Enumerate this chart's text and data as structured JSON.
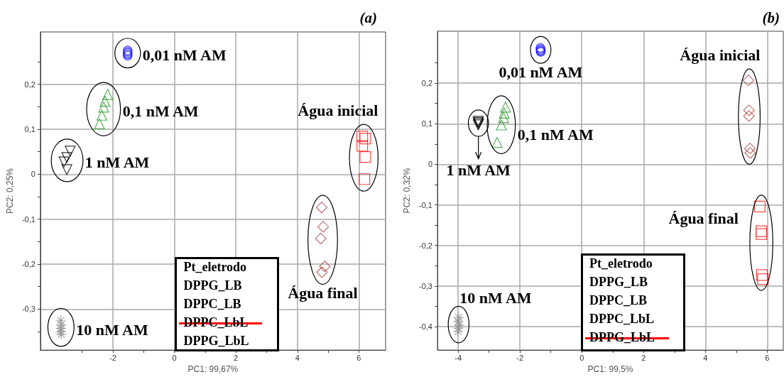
{
  "chart_data": [
    {
      "type": "scatter",
      "title": "(a)",
      "xlabel": "PC1: 99,67%",
      "ylabel": "PC2: 0,25%",
      "xlim": [
        -4.36,
        6.87
      ],
      "ylim": [
        -0.391,
        0.316
      ],
      "xticks": [
        {
          "value": -3,
          "label": null
        },
        -2,
        {
          "value": -1,
          "label": null
        },
        0,
        {
          "value": 1,
          "label": null
        },
        2,
        {
          "value": 3,
          "label": null
        },
        4,
        {
          "value": 5,
          "label": null
        },
        6
      ],
      "yticks": [
        {
          "value": -0.35,
          "label": null
        },
        {
          "value": -0.3,
          "label": "-0,3"
        },
        {
          "value": -0.25,
          "label": null
        },
        {
          "value": -0.2,
          "label": "-0,2"
        },
        {
          "value": -0.15,
          "label": null
        },
        {
          "value": -0.1,
          "label": "-0,1"
        },
        {
          "value": -0.05,
          "label": null
        },
        0,
        {
          "value": 0.05,
          "label": null
        },
        {
          "value": 0.1,
          "label": "0,1"
        },
        {
          "value": 0.15,
          "label": null
        },
        {
          "value": 0.2,
          "label": "0,2"
        },
        {
          "value": 0.25,
          "label": null
        }
      ],
      "grid": true,
      "series": [
        {
          "name": "0,01 nM AM",
          "color": "#1a1aff",
          "marker": "circle",
          "x": [
            -1.52,
            -1.52,
            -1.52,
            -1.52,
            -1.52
          ],
          "values": [
            0.275,
            0.272,
            0.269,
            0.266,
            0.263
          ]
        },
        {
          "name": "0,1 nM AM",
          "color": "#2e9a2e",
          "marker": "triangle",
          "x": [
            -2.17,
            -2.26,
            -2.3,
            -2.36,
            -2.44
          ],
          "values": [
            0.177,
            0.162,
            0.149,
            0.131,
            0.112
          ]
        },
        {
          "name": "1 nM AM",
          "color": "#000000",
          "marker": "triangle-down",
          "x": [
            -3.39,
            -3.5,
            -3.59,
            -3.5
          ],
          "values": [
            0.051,
            0.037,
            0.027,
            0.01
          ]
        },
        {
          "name": "10 nM AM",
          "color": "#909090",
          "marker": "cross",
          "x": [
            -3.7,
            -3.68,
            -3.69,
            -3.7,
            -3.68
          ],
          "values": [
            -0.325,
            -0.335,
            -0.343,
            -0.35,
            -0.356
          ]
        },
        {
          "name": "Água inicial",
          "color": "#ff1a1a",
          "marker": "square",
          "x": [
            6.11,
            6.21,
            6.11,
            6.21,
            6.18
          ],
          "values": [
            0.084,
            0.079,
            0.063,
            0.038,
            -0.011
          ]
        },
        {
          "name": "Água final",
          "color": "#b04848",
          "marker": "diamond",
          "x": [
            4.79,
            4.84,
            4.76,
            4.89,
            4.8
          ],
          "values": [
            -0.074,
            -0.117,
            -0.143,
            -0.205,
            -0.218
          ]
        }
      ],
      "annotations": [
        "Pt_eletrodo",
        "DPPG_LB",
        "DPPC_LB",
        "DPPC_LbL",
        "DPPG_LbL"
      ]
    },
    {
      "type": "scatter",
      "title": "(b)",
      "xlabel": "PC1: 99,5%",
      "ylabel": "PC2: 0,32%",
      "xlim": [
        -4.67,
        6.52
      ],
      "ylim": [
        -0.458,
        0.328
      ],
      "xticks": [
        -4,
        {
          "value": -3,
          "label": null
        },
        -2,
        {
          "value": -1,
          "label": null
        },
        0,
        {
          "value": 1,
          "label": null
        },
        2,
        {
          "value": 3,
          "label": null
        },
        4,
        {
          "value": 5,
          "label": null
        },
        6
      ],
      "yticks": [
        {
          "value": -0.4,
          "label": "-0,4"
        },
        {
          "value": -0.35,
          "label": null
        },
        {
          "value": -0.3,
          "label": "-0,3"
        },
        {
          "value": -0.25,
          "label": null
        },
        {
          "value": -0.2,
          "label": "-0,2"
        },
        {
          "value": -0.15,
          "label": null
        },
        {
          "value": -0.1,
          "label": "-0,1"
        },
        {
          "value": -0.05,
          "label": null
        },
        0,
        {
          "value": 0.05,
          "label": null
        },
        {
          "value": 0.1,
          "label": "0,1"
        },
        {
          "value": 0.15,
          "label": null
        },
        {
          "value": 0.2,
          "label": "0,2"
        },
        {
          "value": 0.25,
          "label": null
        }
      ],
      "grid": true,
      "series": [
        {
          "name": "0,01 nM AM",
          "color": "#1a1aff",
          "marker": "circle",
          "x": [
            -1.34,
            -1.33,
            -1.34,
            -1.32,
            -1.33
          ],
          "values": [
            0.287,
            0.284,
            0.281,
            0.279,
            0.277
          ]
        },
        {
          "name": "0,1 nM AM",
          "color": "#2e9a2e",
          "marker": "triangle",
          "x": [
            -2.47,
            -2.51,
            -2.53,
            -2.6,
            -2.74
          ],
          "values": [
            0.141,
            0.126,
            0.115,
            0.097,
            0.054
          ]
        },
        {
          "name": "1 nM AM",
          "color": "#000000",
          "marker": "triangle-down",
          "x": [
            -3.35,
            -3.35,
            -3.34,
            -3.35
          ],
          "values": [
            0.106,
            0.103,
            0.1,
            0.097
          ]
        },
        {
          "name": "10 nM AM",
          "color": "#909090",
          "marker": "cross",
          "x": [
            -3.98,
            -4.0,
            -3.97,
            -3.99,
            -4.0
          ],
          "values": [
            -0.378,
            -0.388,
            -0.396,
            -0.404,
            -0.412
          ]
        },
        {
          "name": "Água inicial",
          "color": "#b04848",
          "marker": "diamond",
          "x": [
            5.39,
            5.41,
            5.41,
            5.44,
            5.45
          ],
          "values": [
            0.207,
            0.133,
            0.119,
            0.039,
            0.028
          ]
        },
        {
          "name": "Água final",
          "color": "#ff1a1a",
          "marker": "square",
          "x": [
            5.76,
            5.81,
            5.81,
            5.83,
            5.86
          ],
          "values": [
            -0.104,
            -0.165,
            -0.172,
            -0.273,
            -0.283
          ]
        }
      ],
      "annotations": [
        "Pt_eletrodo",
        "DPPG_LB",
        "DPPC_LB",
        "DPPC_LbL",
        "DPPG_LbL"
      ]
    }
  ]
}
